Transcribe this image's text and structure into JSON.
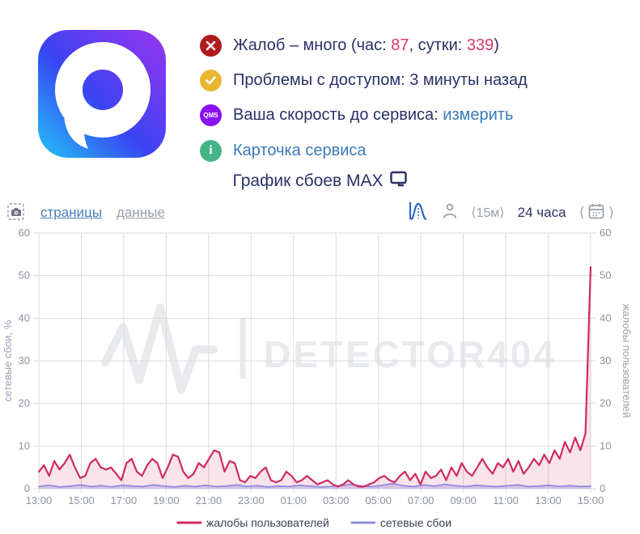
{
  "page_title": "График сбоев MAX",
  "status": {
    "complaints": {
      "prefix": "Жалоб – много (час: ",
      "hour": "87",
      "mid": ", сутки: ",
      "day": "339",
      "suffix": ")"
    },
    "access": "Проблемы с доступом: 3 минуты назад",
    "speed": {
      "prefix": "Ваша скорость до сервиса: ",
      "link": "измерить"
    },
    "card": "Карточка сервиса",
    "qms_label": "QMS",
    "info_label": "i"
  },
  "toolbar": {
    "tab_pages": "страницы",
    "tab_data": "данные",
    "interval": "⟨15м⟩",
    "range": "24 часа",
    "prev": "⟨",
    "next": "⟩"
  },
  "colors": {
    "complaints_line": "#cf2b62",
    "network_line": "#8f8ce0",
    "badge_error": "#b11a1f",
    "badge_warning": "#eab733",
    "badge_qms": "#8a12f5",
    "badge_info": "#44b586"
  },
  "chart_data": {
    "type": "area",
    "x_span_hours": 26,
    "x_tick_labels": [
      "13:00",
      "15:00",
      "17:00",
      "19:00",
      "21:00",
      "23:00",
      "01:00",
      "03:00",
      "05:00",
      "07:00",
      "09:00",
      "11:00",
      "13:00",
      "15:00"
    ],
    "y_ticks": [
      0,
      10,
      20,
      30,
      40,
      50,
      60
    ],
    "ylim": [
      0,
      60
    ],
    "ylabel_left": "сетевые сбои, %",
    "ylabel_right": "жалобы пользователей",
    "watermark": "DETECTOR404",
    "legend": [
      {
        "name": "жалобы пользователей",
        "color": "#cf2b62"
      },
      {
        "name": "сетевые сбои",
        "color": "#8f8ce0"
      }
    ],
    "series": [
      {
        "name": "сетевые сбои",
        "color": "#8f8ce0",
        "fill": "rgba(143,140,224,0.30)",
        "width": 1.8,
        "values": [
          0.5,
          0.8,
          0.4,
          0.6,
          0.9,
          0.5,
          0.7,
          0.4,
          0.8,
          0.6,
          0.5,
          0.9,
          0.6,
          0.4,
          0.7,
          0.5,
          0.8,
          0.5,
          0.6,
          0.9,
          0.5,
          0.7,
          0.4,
          0.6,
          0.5,
          0.8,
          0.6,
          0.4,
          0.5,
          0.7,
          1.0,
          0.6,
          0.5,
          0.8,
          1.2,
          0.7,
          0.5,
          0.9,
          0.6,
          1.0,
          0.7,
          0.5,
          0.8,
          0.6,
          0.5,
          0.7,
          0.9,
          0.5,
          0.6,
          0.8,
          0.5,
          0.7,
          0.5,
          0.6
        ]
      },
      {
        "name": "жалобы пользователей",
        "color": "#cf2b62",
        "fill": "rgba(207,43,98,0.13)",
        "width": 2.2,
        "values": [
          4,
          5.5,
          3,
          6.5,
          4.5,
          6,
          8,
          5,
          2.5,
          3,
          6,
          7,
          5,
          4.5,
          5,
          3.5,
          2,
          6,
          7,
          4,
          3,
          5.5,
          7,
          6,
          2.5,
          5,
          8,
          7.5,
          4,
          2.5,
          3.5,
          6,
          5,
          7,
          9,
          8.5,
          4,
          6.5,
          6,
          2,
          1.5,
          3,
          2.5,
          4,
          5,
          2,
          1.5,
          2,
          4,
          3,
          1.5,
          2,
          3,
          2,
          1,
          1.5,
          2,
          1,
          0.5,
          1,
          2,
          1,
          0.5,
          0.5,
          1,
          1.5,
          2.5,
          3,
          2,
          1.5,
          3,
          4,
          2,
          3.5,
          1,
          4,
          2.5,
          3,
          4.5,
          2,
          5,
          3,
          6,
          4,
          3,
          5,
          7,
          5,
          3.5,
          6,
          5,
          7,
          4,
          6.5,
          3.5,
          5,
          7,
          5.5,
          8,
          6,
          9,
          7,
          11,
          8.5,
          12,
          9,
          13,
          52
        ]
      }
    ]
  }
}
